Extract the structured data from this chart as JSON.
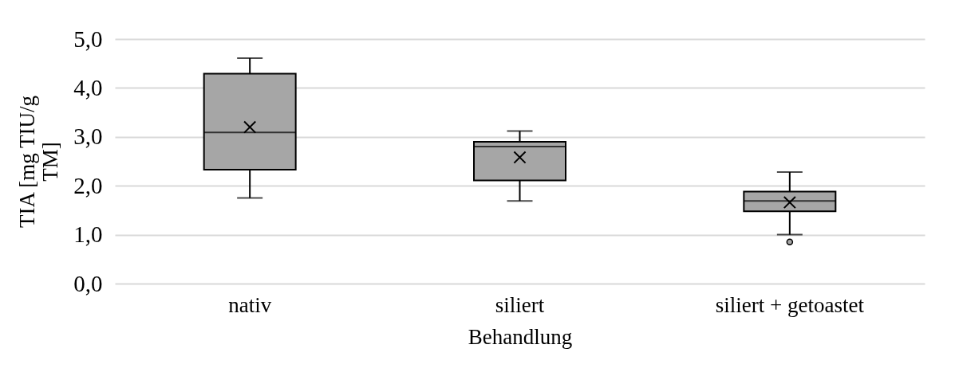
{
  "chart_data": {
    "type": "box",
    "xlabel": "Behandlung",
    "ylabel": "TIA [mg TIU/g TM]",
    "categories": [
      "nativ",
      "siliert",
      "siliert + getoastet"
    ],
    "boxes": [
      {
        "low": 1.75,
        "q1": 2.33,
        "median": 3.09,
        "q3": 4.29,
        "high": 4.61,
        "mean": 3.2
      },
      {
        "low": 1.69,
        "q1": 2.11,
        "median": 2.8,
        "q3": 2.9,
        "high": 3.12,
        "mean": 2.58
      },
      {
        "low": 1.0,
        "q1": 1.48,
        "median": 1.69,
        "q3": 1.88,
        "high": 2.28,
        "mean": 1.66,
        "outliers": [
          0.85
        ]
      }
    ],
    "color": "#a6a6a6",
    "ylim": [
      0,
      5
    ],
    "yticks": [
      {
        "value": 0,
        "label": "0,0"
      },
      {
        "value": 1,
        "label": "1,0"
      },
      {
        "value": 2,
        "label": "2,0"
      },
      {
        "value": 3,
        "label": "3,0"
      },
      {
        "value": 4,
        "label": "4,0"
      },
      {
        "value": 5,
        "label": "5,0"
      }
    ],
    "grid": "y"
  }
}
